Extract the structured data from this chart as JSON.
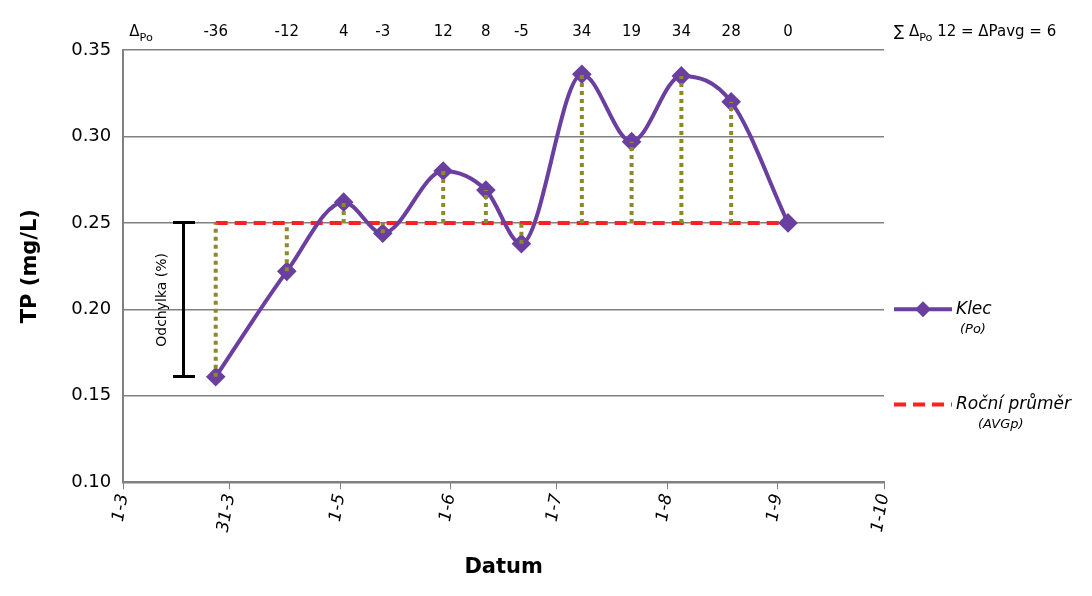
{
  "chart_data": {
    "type": "line",
    "xlabel": "Datum",
    "ylabel": "TP (mg/L)",
    "x": [
      "--03-27",
      "--04-16",
      "--05-02",
      "--05-13",
      "--05-30",
      "--06-11",
      "--06-21",
      "--07-08",
      "--07-22",
      "--08-05",
      "--08-19",
      "--09-04"
    ],
    "series": [
      {
        "name": "Klec (Po)",
        "color": "#6b3fa0",
        "values": [
          0.161,
          0.222,
          0.262,
          0.244,
          0.28,
          0.269,
          0.238,
          0.336,
          0.297,
          0.335,
          0.32,
          0.25
        ],
        "marker": "diamond",
        "line_style": "solid",
        "errors": [
          [
            0.161,
            0.25
          ],
          [
            0.222,
            0.25
          ],
          [
            0.25,
            0.262
          ],
          [
            0.244,
            0.25
          ],
          [
            0.25,
            0.28
          ],
          [
            0.25,
            0.269
          ],
          [
            0.238,
            0.25
          ],
          [
            0.25,
            0.336
          ],
          [
            0.25,
            0.297
          ],
          [
            0.25,
            0.335
          ],
          [
            0.25,
            0.32
          ],
          null
        ]
      },
      {
        "name": "Roční průměr (AVGp)",
        "color": "#ff2020",
        "x": [
          "--03-27",
          "--09-04"
        ],
        "values": [
          0.25,
          0.25
        ],
        "marker": "none",
        "line_style": "dashed"
      }
    ],
    "xlim": [
      "--03-01",
      "--10-01"
    ],
    "xticks": [
      {
        "value": "--03-01",
        "label": "1-3"
      },
      {
        "value": "--03-31",
        "label": "31-3"
      },
      {
        "value": "--05-01",
        "label": "1-5"
      },
      {
        "value": "--06-01",
        "label": "1-6"
      },
      {
        "value": "--07-01",
        "label": "1-7"
      },
      {
        "value": "--08-01",
        "label": "1-8"
      },
      {
        "value": "--09-01",
        "label": "1-9"
      },
      {
        "value": "--10-01",
        "label": "1-10"
      }
    ],
    "ylim": [
      0.1,
      0.35
    ],
    "yticks": [
      {
        "value": 0.1,
        "label": "0.10"
      },
      0.15,
      {
        "value": 0.2,
        "label": "0.20"
      },
      0.25,
      {
        "value": 0.3,
        "label": "0.30"
      },
      0.35
    ],
    "grid": "y",
    "legend": "right",
    "annotations": [
      "Δ$_{Po}$",
      "-36",
      "-12",
      "4",
      "-3",
      "12",
      "8",
      "-5",
      "34",
      "19",
      "34",
      "28",
      "0",
      "∑ Δ$_{Po}$ 12 = ΔPavg = 6",
      "Odchylka (%)"
    ]
  }
}
